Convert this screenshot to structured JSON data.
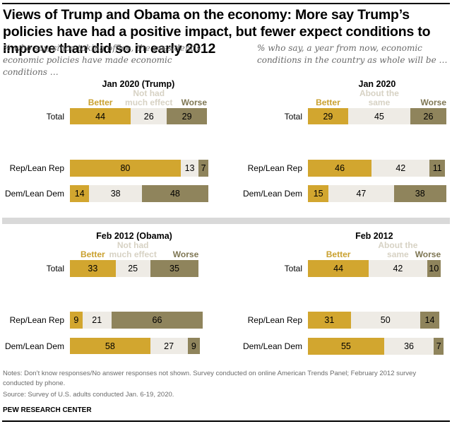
{
  "title": "Views of Trump and Obama on the economy: More say Trump’s policies have had a positive impact, but fewer expect conditions to improve than did so in early 2012",
  "subtitles": {
    "left": "% who say, since taking office, the president’s economic policies have made economic conditions …",
    "right": "% who say, a year from now, economic conditions in the country as whole will be …"
  },
  "colors": {
    "better": "#d2a62f",
    "neutral": "#eeebe5",
    "worse": "#8f845c",
    "better_label": "#c9a02e",
    "neutral_label": "#d7d2c4",
    "worse_label": "#7e7653",
    "separator": "#d9d9d9"
  },
  "notes": "Notes: Don’t know responses/No answer responses not shown. Survey conducted on online American Trends Panel; February 2012 survey conducted by phone.",
  "source": "Source: Survey of U.S. adults conducted Jan. 6-19, 2020.",
  "org": "PEW RESEARCH CENTER",
  "chart_data": [
    {
      "type": "bar",
      "stacked": true,
      "orientation": "horizontal",
      "title": "Jan 2020 (Trump)",
      "question": "% who say, since taking office, the president’s economic policies have made economic conditions …",
      "categories": [
        "Total",
        "Rep/Lean Rep",
        "Dem/Lean Dem"
      ],
      "series": [
        {
          "name": "Better",
          "values": [
            44,
            80,
            14
          ]
        },
        {
          "name": "Not had much effect",
          "values": [
            26,
            13,
            38
          ]
        },
        {
          "name": "Worse",
          "values": [
            29,
            7,
            48
          ]
        }
      ],
      "xlim": [
        0,
        100
      ]
    },
    {
      "type": "bar",
      "stacked": true,
      "orientation": "horizontal",
      "title": "Jan 2020",
      "question": "% who say, a year from now, economic conditions in the country as whole will be …",
      "categories": [
        "Total",
        "Rep/Lean Rep",
        "Dem/Lean Dem"
      ],
      "series": [
        {
          "name": "Better",
          "values": [
            29,
            46,
            15
          ]
        },
        {
          "name": "About the same",
          "values": [
            45,
            42,
            47
          ]
        },
        {
          "name": "Worse",
          "values": [
            26,
            11,
            38
          ]
        }
      ],
      "xlim": [
        0,
        100
      ]
    },
    {
      "type": "bar",
      "stacked": true,
      "orientation": "horizontal",
      "title": "Feb 2012 (Obama)",
      "question": "% who say, since taking office, the president’s economic policies have made economic conditions …",
      "categories": [
        "Total",
        "Rep/Lean Rep",
        "Dem/Lean Dem"
      ],
      "series": [
        {
          "name": "Better",
          "values": [
            33,
            9,
            58
          ]
        },
        {
          "name": "Not had much effect",
          "values": [
            25,
            21,
            27
          ]
        },
        {
          "name": "Worse",
          "values": [
            35,
            66,
            9
          ]
        }
      ],
      "xlim": [
        0,
        100
      ]
    },
    {
      "type": "bar",
      "stacked": true,
      "orientation": "horizontal",
      "title": "Feb 2012",
      "question": "% who say, a year from now, economic conditions in the country as whole will be …",
      "categories": [
        "Total",
        "Rep/Lean Rep",
        "Dem/Lean Dem"
      ],
      "series": [
        {
          "name": "Better",
          "values": [
            44,
            31,
            55
          ]
        },
        {
          "name": "About the same",
          "values": [
            42,
            50,
            36
          ]
        },
        {
          "name": "Worse",
          "values": [
            10,
            14,
            7
          ]
        }
      ],
      "xlim": [
        0,
        100
      ]
    }
  ]
}
